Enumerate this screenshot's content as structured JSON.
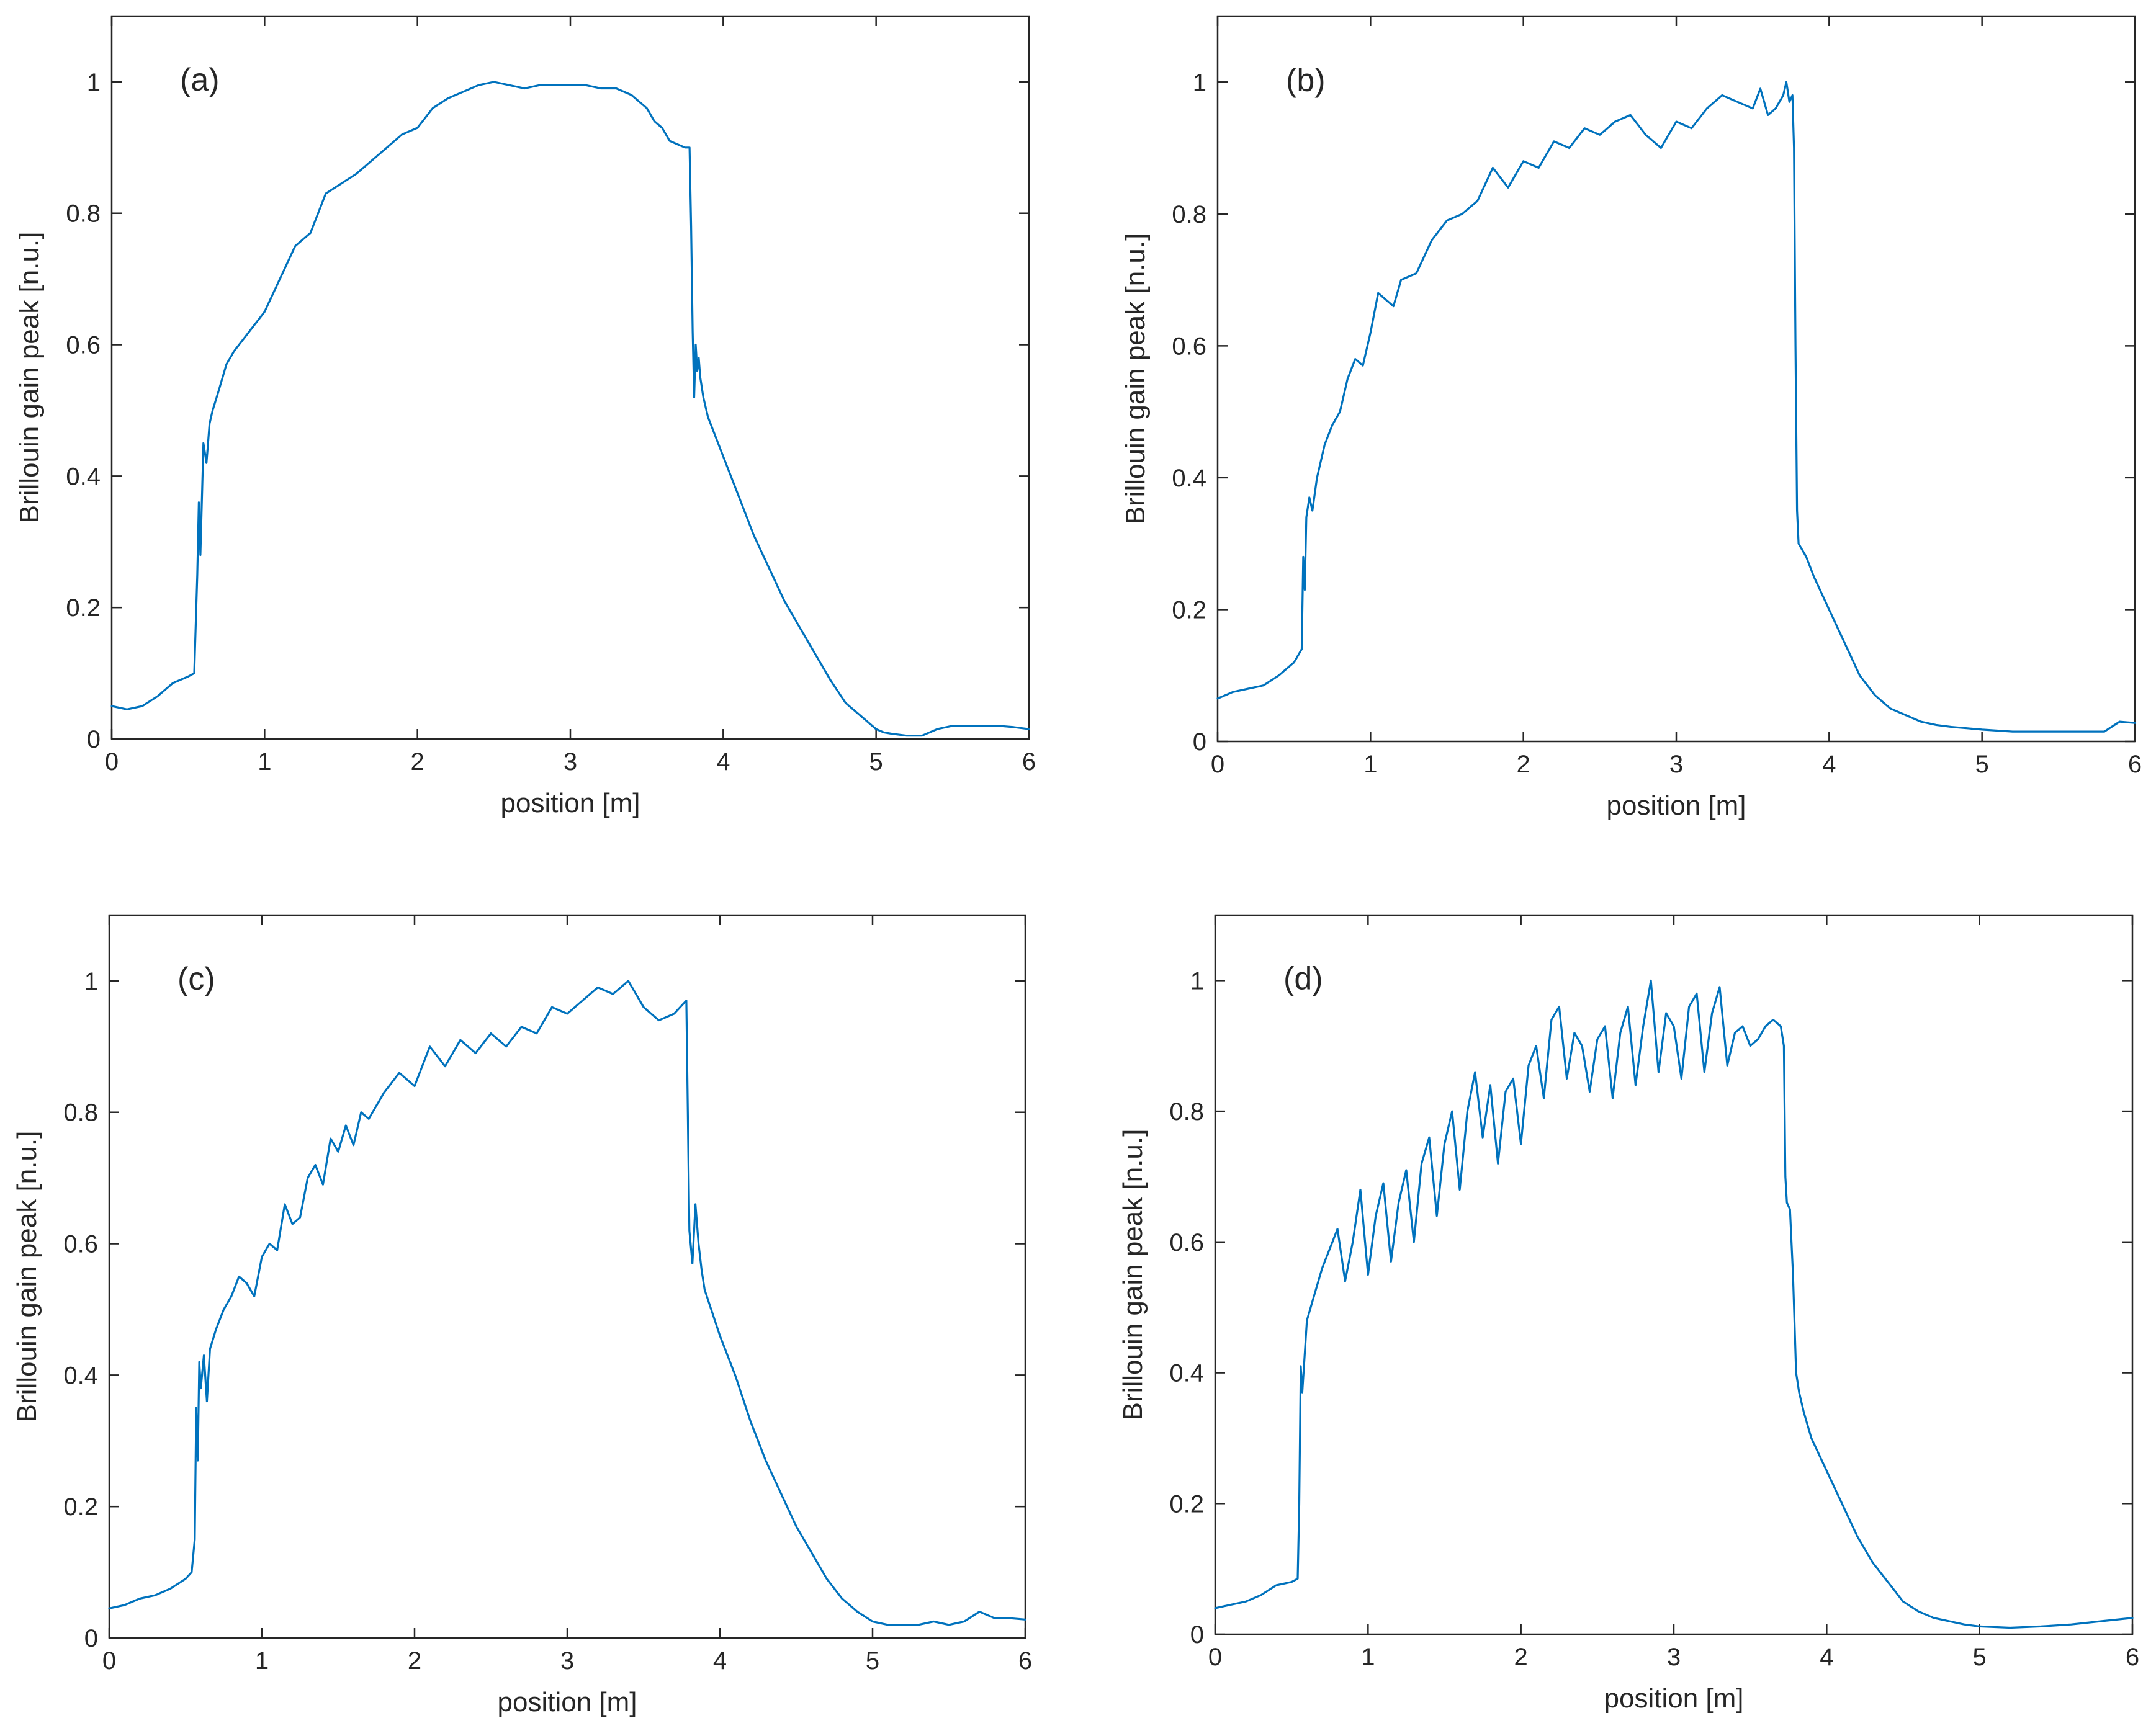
{
  "chart_data": [
    {
      "type": "line",
      "panel_label": "(a)",
      "xlabel": "position  [m]",
      "ylabel": "Brillouin gain peak  [n.u.]",
      "xlim": [
        0,
        6
      ],
      "ylim": [
        0,
        1.1
      ],
      "xticks": [
        0,
        1,
        2,
        3,
        4,
        5,
        6
      ],
      "yticks": [
        0,
        0.2,
        0.4,
        0.6,
        0.8,
        1
      ],
      "xtick_labels": [
        "0",
        "1",
        "2",
        "3",
        "4",
        "5",
        "6"
      ],
      "ytick_labels": [
        "0",
        "0.2",
        "0.4",
        "0.6",
        "0.8",
        "1"
      ],
      "color": "#0072BD",
      "series": [
        {
          "name": "Brillouin gain peak",
          "x": [
            0,
            0.1,
            0.2,
            0.3,
            0.4,
            0.5,
            0.54,
            0.56,
            0.57,
            0.58,
            0.6,
            0.62,
            0.64,
            0.66,
            0.7,
            0.75,
            0.8,
            0.9,
            1.0,
            1.1,
            1.2,
            1.3,
            1.4,
            1.5,
            1.6,
            1.7,
            1.8,
            1.9,
            2.0,
            2.1,
            2.2,
            2.3,
            2.4,
            2.5,
            2.6,
            2.7,
            2.8,
            2.9,
            3.0,
            3.1,
            3.2,
            3.3,
            3.4,
            3.5,
            3.55,
            3.6,
            3.65,
            3.7,
            3.75,
            3.78,
            3.79,
            3.8,
            3.81,
            3.82,
            3.83,
            3.84,
            3.85,
            3.87,
            3.9,
            4.0,
            4.1,
            4.2,
            4.3,
            4.4,
            4.5,
            4.6,
            4.7,
            4.8,
            4.9,
            5.0,
            5.05,
            5.1,
            5.2,
            5.3,
            5.4,
            5.5,
            5.6,
            5.7,
            5.8,
            5.9,
            6.0
          ],
          "y": [
            0.05,
            0.045,
            0.05,
            0.065,
            0.085,
            0.095,
            0.1,
            0.25,
            0.36,
            0.28,
            0.45,
            0.42,
            0.48,
            0.5,
            0.53,
            0.57,
            0.59,
            0.62,
            0.65,
            0.7,
            0.75,
            0.77,
            0.83,
            0.845,
            0.86,
            0.88,
            0.9,
            0.92,
            0.93,
            0.96,
            0.975,
            0.985,
            0.995,
            1.0,
            0.995,
            0.99,
            0.995,
            0.995,
            0.995,
            0.995,
            0.99,
            0.99,
            0.98,
            0.96,
            0.94,
            0.93,
            0.91,
            0.905,
            0.9,
            0.9,
            0.78,
            0.62,
            0.52,
            0.6,
            0.56,
            0.58,
            0.55,
            0.52,
            0.49,
            0.43,
            0.37,
            0.31,
            0.26,
            0.21,
            0.17,
            0.13,
            0.09,
            0.055,
            0.035,
            0.015,
            0.01,
            0.008,
            0.005,
            0.005,
            0.015,
            0.02,
            0.02,
            0.02,
            0.02,
            0.018,
            0.015
          ]
        }
      ]
    },
    {
      "type": "line",
      "panel_label": "(b)",
      "xlabel": "position  [m]",
      "ylabel": "Brillouin gain peak  [n.u.]",
      "xlim": [
        0,
        6
      ],
      "ylim": [
        0,
        1.1
      ],
      "xticks": [
        0,
        1,
        2,
        3,
        4,
        5,
        6
      ],
      "yticks": [
        0,
        0.2,
        0.4,
        0.6,
        0.8,
        1
      ],
      "xtick_labels": [
        "0",
        "1",
        "2",
        "3",
        "4",
        "5",
        "6"
      ],
      "ytick_labels": [
        "0",
        "0.2",
        "0.4",
        "0.6",
        "0.8",
        "1"
      ],
      "color": "#0072BD",
      "series": [
        {
          "name": "Brillouin gain peak",
          "x": [
            0,
            0.1,
            0.2,
            0.3,
            0.4,
            0.5,
            0.55,
            0.56,
            0.57,
            0.58,
            0.6,
            0.62,
            0.65,
            0.7,
            0.75,
            0.8,
            0.85,
            0.9,
            0.95,
            1.0,
            1.05,
            1.1,
            1.15,
            1.2,
            1.3,
            1.4,
            1.5,
            1.6,
            1.7,
            1.8,
            1.9,
            2.0,
            2.1,
            2.2,
            2.3,
            2.4,
            2.5,
            2.6,
            2.7,
            2.8,
            2.9,
            3.0,
            3.1,
            3.2,
            3.3,
            3.4,
            3.5,
            3.55,
            3.6,
            3.65,
            3.7,
            3.72,
            3.74,
            3.76,
            3.77,
            3.78,
            3.79,
            3.8,
            3.85,
            3.9,
            4.0,
            4.1,
            4.2,
            4.3,
            4.4,
            4.5,
            4.6,
            4.7,
            4.8,
            4.9,
            5.0,
            5.2,
            5.4,
            5.6,
            5.8,
            5.9,
            6.0
          ],
          "y": [
            0.065,
            0.075,
            0.08,
            0.085,
            0.1,
            0.12,
            0.14,
            0.28,
            0.23,
            0.34,
            0.37,
            0.35,
            0.4,
            0.45,
            0.48,
            0.5,
            0.55,
            0.58,
            0.57,
            0.62,
            0.68,
            0.67,
            0.66,
            0.7,
            0.71,
            0.76,
            0.79,
            0.8,
            0.82,
            0.87,
            0.84,
            0.88,
            0.87,
            0.91,
            0.9,
            0.93,
            0.92,
            0.94,
            0.95,
            0.92,
            0.9,
            0.94,
            0.93,
            0.96,
            0.98,
            0.97,
            0.96,
            0.99,
            0.95,
            0.96,
            0.98,
            1.0,
            0.97,
            0.98,
            0.9,
            0.6,
            0.35,
            0.3,
            0.28,
            0.25,
            0.2,
            0.15,
            0.1,
            0.07,
            0.05,
            0.04,
            0.03,
            0.025,
            0.022,
            0.02,
            0.018,
            0.015,
            0.015,
            0.015,
            0.015,
            0.03,
            0.028
          ]
        }
      ]
    },
    {
      "type": "line",
      "panel_label": "(c)",
      "xlabel": "position  [m]",
      "ylabel": "Brillouin gain peak  [n.u.]",
      "xlim": [
        0,
        6
      ],
      "ylim": [
        0,
        1.1
      ],
      "xticks": [
        0,
        1,
        2,
        3,
        4,
        5,
        6
      ],
      "yticks": [
        0,
        0.2,
        0.4,
        0.6,
        0.8,
        1
      ],
      "xtick_labels": [
        "0",
        "1",
        "2",
        "3",
        "4",
        "5",
        "6"
      ],
      "ytick_labels": [
        "0",
        "0.2",
        "0.4",
        "0.6",
        "0.8",
        "1"
      ],
      "color": "#0072BD",
      "series": [
        {
          "name": "Brillouin gain peak",
          "x": [
            0,
            0.1,
            0.2,
            0.3,
            0.4,
            0.5,
            0.54,
            0.56,
            0.57,
            0.58,
            0.59,
            0.6,
            0.62,
            0.64,
            0.66,
            0.7,
            0.75,
            0.8,
            0.85,
            0.9,
            0.95,
            1.0,
            1.05,
            1.1,
            1.15,
            1.2,
            1.25,
            1.3,
            1.35,
            1.4,
            1.45,
            1.5,
            1.55,
            1.6,
            1.65,
            1.7,
            1.8,
            1.9,
            2.0,
            2.1,
            2.2,
            2.3,
            2.4,
            2.5,
            2.6,
            2.7,
            2.8,
            2.9,
            3.0,
            3.1,
            3.2,
            3.3,
            3.4,
            3.5,
            3.6,
            3.7,
            3.78,
            3.79,
            3.8,
            3.82,
            3.84,
            3.86,
            3.88,
            3.9,
            4.0,
            4.1,
            4.2,
            4.3,
            4.4,
            4.5,
            4.6,
            4.7,
            4.8,
            4.9,
            5.0,
            5.1,
            5.2,
            5.3,
            5.4,
            5.5,
            5.6,
            5.7,
            5.8,
            5.9,
            6.0
          ],
          "y": [
            0.045,
            0.05,
            0.06,
            0.065,
            0.075,
            0.09,
            0.1,
            0.15,
            0.35,
            0.27,
            0.42,
            0.38,
            0.43,
            0.36,
            0.44,
            0.47,
            0.5,
            0.52,
            0.55,
            0.54,
            0.52,
            0.58,
            0.6,
            0.59,
            0.66,
            0.63,
            0.64,
            0.7,
            0.72,
            0.69,
            0.76,
            0.74,
            0.78,
            0.75,
            0.8,
            0.79,
            0.83,
            0.86,
            0.84,
            0.9,
            0.87,
            0.91,
            0.89,
            0.92,
            0.9,
            0.93,
            0.92,
            0.96,
            0.95,
            0.97,
            0.99,
            0.98,
            1.0,
            0.96,
            0.94,
            0.95,
            0.97,
            0.8,
            0.62,
            0.57,
            0.66,
            0.6,
            0.56,
            0.53,
            0.46,
            0.4,
            0.33,
            0.27,
            0.22,
            0.17,
            0.13,
            0.09,
            0.06,
            0.04,
            0.025,
            0.02,
            0.02,
            0.02,
            0.025,
            0.02,
            0.025,
            0.04,
            0.03,
            0.03,
            0.028
          ]
        }
      ]
    },
    {
      "type": "line",
      "panel_label": "(d)",
      "xlabel": "position  [m]",
      "ylabel": "Brillouin gain peak  [n.u.]",
      "xlim": [
        0,
        6
      ],
      "ylim": [
        0,
        1.1
      ],
      "xticks": [
        0,
        1,
        2,
        3,
        4,
        5,
        6
      ],
      "yticks": [
        0,
        0.2,
        0.4,
        0.6,
        0.8,
        1
      ],
      "xtick_labels": [
        "0",
        "1",
        "2",
        "3",
        "4",
        "5",
        "6"
      ],
      "ytick_labels": [
        "0",
        "0.2",
        "0.4",
        "0.6",
        "0.8",
        "1"
      ],
      "color": "#0072BD",
      "series": [
        {
          "name": "Brillouin gain peak",
          "x": [
            0,
            0.1,
            0.2,
            0.3,
            0.4,
            0.5,
            0.54,
            0.55,
            0.56,
            0.57,
            0.6,
            0.65,
            0.7,
            0.75,
            0.8,
            0.85,
            0.9,
            0.95,
            1.0,
            1.05,
            1.1,
            1.15,
            1.2,
            1.25,
            1.3,
            1.35,
            1.4,
            1.45,
            1.5,
            1.55,
            1.6,
            1.65,
            1.7,
            1.75,
            1.8,
            1.85,
            1.9,
            1.95,
            2.0,
            2.05,
            2.1,
            2.15,
            2.2,
            2.25,
            2.3,
            2.35,
            2.4,
            2.45,
            2.5,
            2.55,
            2.6,
            2.65,
            2.7,
            2.75,
            2.8,
            2.85,
            2.9,
            2.95,
            3.0,
            3.05,
            3.1,
            3.15,
            3.2,
            3.25,
            3.3,
            3.35,
            3.4,
            3.45,
            3.5,
            3.55,
            3.6,
            3.65,
            3.7,
            3.72,
            3.73,
            3.74,
            3.76,
            3.78,
            3.8,
            3.82,
            3.85,
            3.9,
            4.0,
            4.1,
            4.2,
            4.3,
            4.4,
            4.5,
            4.6,
            4.7,
            4.8,
            4.9,
            5.0,
            5.2,
            5.4,
            5.6,
            5.8,
            6.0
          ],
          "y": [
            0.04,
            0.045,
            0.05,
            0.06,
            0.075,
            0.08,
            0.085,
            0.2,
            0.41,
            0.37,
            0.48,
            0.52,
            0.56,
            0.59,
            0.62,
            0.54,
            0.6,
            0.68,
            0.55,
            0.64,
            0.69,
            0.57,
            0.66,
            0.71,
            0.6,
            0.72,
            0.76,
            0.64,
            0.75,
            0.8,
            0.68,
            0.8,
            0.86,
            0.76,
            0.84,
            0.72,
            0.83,
            0.85,
            0.75,
            0.87,
            0.9,
            0.82,
            0.94,
            0.96,
            0.85,
            0.92,
            0.9,
            0.83,
            0.91,
            0.93,
            0.82,
            0.92,
            0.96,
            0.84,
            0.93,
            1.0,
            0.86,
            0.95,
            0.93,
            0.85,
            0.96,
            0.98,
            0.86,
            0.95,
            0.99,
            0.87,
            0.92,
            0.93,
            0.9,
            0.91,
            0.93,
            0.94,
            0.93,
            0.9,
            0.7,
            0.66,
            0.65,
            0.55,
            0.4,
            0.37,
            0.34,
            0.3,
            0.25,
            0.2,
            0.15,
            0.11,
            0.08,
            0.05,
            0.035,
            0.025,
            0.02,
            0.015,
            0.012,
            0.01,
            0.012,
            0.015,
            0.02,
            0.025
          ]
        }
      ]
    }
  ]
}
